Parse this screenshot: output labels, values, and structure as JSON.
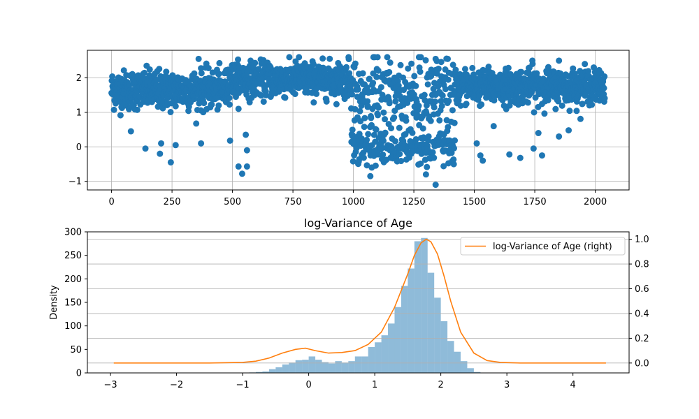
{
  "chart_data": [
    {
      "type": "scatter",
      "title": "",
      "xlabel": "",
      "ylabel": "",
      "xlim": [
        -100,
        2140
      ],
      "ylim": [
        -1.25,
        2.8
      ],
      "xticks": [
        0,
        250,
        500,
        750,
        1000,
        1250,
        1500,
        1750,
        2000
      ],
      "yticks": [
        -1,
        0,
        1,
        2
      ],
      "grid": true,
      "color": "#1f77b4",
      "n_points": 2040,
      "segments": [
        {
          "x_range": [
            0,
            480
          ],
          "center": 1.65,
          "spread": 0.28
        },
        {
          "x_range": [
            480,
            990
          ],
          "center": 1.95,
          "spread": 0.25
        },
        {
          "x_range": [
            990,
            1420
          ],
          "center": 0.8,
          "spread": 0.85
        },
        {
          "x_range": [
            1420,
            2040
          ],
          "center": 1.75,
          "spread": 0.25
        }
      ],
      "outliers": [
        {
          "x": 140,
          "y": -0.05
        },
        {
          "x": 200,
          "y": -0.2
        },
        {
          "x": 205,
          "y": 0.1
        },
        {
          "x": 245,
          "y": -0.45
        },
        {
          "x": 265,
          "y": 0.05
        },
        {
          "x": 370,
          "y": 0.1
        },
        {
          "x": 80,
          "y": 0.45
        },
        {
          "x": 525,
          "y": -0.57
        },
        {
          "x": 540,
          "y": -0.78
        },
        {
          "x": 560,
          "y": -0.57
        },
        {
          "x": 560,
          "y": -0.1
        },
        {
          "x": 490,
          "y": 0.18
        },
        {
          "x": 555,
          "y": 0.35
        },
        {
          "x": 1070,
          "y": -0.85
        },
        {
          "x": 1340,
          "y": -1.1
        },
        {
          "x": 1300,
          "y": -0.8
        },
        {
          "x": 1645,
          "y": -0.22
        },
        {
          "x": 1690,
          "y": -0.32
        },
        {
          "x": 1745,
          "y": -0.05
        },
        {
          "x": 1780,
          "y": -0.25
        },
        {
          "x": 1510,
          "y": 0.1
        },
        {
          "x": 1525,
          "y": -0.25
        },
        {
          "x": 1535,
          "y": -0.4
        },
        {
          "x": 1850,
          "y": 0.3
        },
        {
          "x": 1890,
          "y": 0.48
        },
        {
          "x": 1765,
          "y": 0.4
        },
        {
          "x": 1580,
          "y": 0.6
        },
        {
          "x": 1340,
          "y": 2.55
        },
        {
          "x": 1390,
          "y": 2.55
        },
        {
          "x": 980,
          "y": 2.6
        },
        {
          "x": 775,
          "y": 2.6
        },
        {
          "x": 360,
          "y": 2.55
        },
        {
          "x": 1740,
          "y": 2.5
        },
        {
          "x": 1850,
          "y": 2.5
        }
      ]
    },
    {
      "type": "bar",
      "subtype": "histogram+density",
      "title": "log-Variance of Age",
      "xlabel": "",
      "ylabel": "Density",
      "xlim": [
        -3.35,
        4.85
      ],
      "ylim": [
        0,
        300
      ],
      "xticks": [
        -3,
        -2,
        -1,
        0,
        1,
        2,
        3,
        4
      ],
      "yticks": [
        0,
        50,
        100,
        150,
        200,
        250,
        300
      ],
      "hist_color": "#1f77b4",
      "hist_alpha": 0.5,
      "bin_start": -0.9,
      "bin_width": 0.1,
      "values": [
        1,
        2,
        3,
        8,
        12,
        18,
        22,
        27,
        28,
        35,
        28,
        23,
        20,
        25,
        22,
        25,
        35,
        35,
        55,
        65,
        80,
        105,
        140,
        185,
        222,
        280,
        287,
        213,
        160,
        110,
        68,
        45,
        25,
        10,
        2
      ],
      "right_axis": {
        "ylim": [
          -0.08,
          1.06
        ],
        "yticks": [
          "0.0",
          "0.2",
          "0.4",
          "0.6",
          "0.8",
          "1.0"
        ],
        "grid": true
      },
      "series": [
        {
          "name": "log-Variance of Age (right)",
          "color": "#ff7f0e",
          "x": [
            -2.95,
            -1.5,
            -1.0,
            -0.8,
            -0.6,
            -0.4,
            -0.2,
            -0.05,
            0.1,
            0.3,
            0.5,
            0.7,
            0.9,
            1.1,
            1.3,
            1.5,
            1.6,
            1.7,
            1.78,
            1.85,
            1.95,
            2.05,
            2.15,
            2.3,
            2.5,
            2.7,
            2.9,
            3.2,
            4.5
          ],
          "y": [
            0.0,
            0.0,
            0.005,
            0.015,
            0.04,
            0.08,
            0.11,
            0.12,
            0.1,
            0.08,
            0.085,
            0.1,
            0.15,
            0.25,
            0.45,
            0.72,
            0.87,
            0.97,
            1.0,
            0.98,
            0.88,
            0.7,
            0.5,
            0.25,
            0.08,
            0.02,
            0.005,
            0.0,
            0.0
          ]
        }
      ],
      "legend_position": "upper-right"
    }
  ]
}
